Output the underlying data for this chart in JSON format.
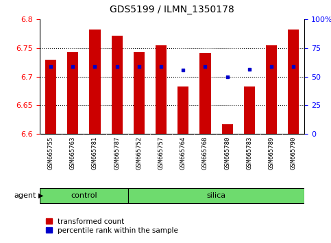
{
  "title": "GDS5199 / ILMN_1350178",
  "samples": [
    "GSM665755",
    "GSM665763",
    "GSM665781",
    "GSM665787",
    "GSM665752",
    "GSM665757",
    "GSM665764",
    "GSM665768",
    "GSM665780",
    "GSM665783",
    "GSM665789",
    "GSM665790"
  ],
  "bar_values": [
    6.73,
    6.743,
    6.782,
    6.772,
    6.743,
    6.755,
    6.683,
    6.742,
    6.617,
    6.683,
    6.755,
    6.782
  ],
  "blue_dot_values": [
    6.718,
    6.717,
    6.718,
    6.718,
    6.718,
    6.718,
    6.712,
    6.718,
    6.7,
    6.713,
    6.718,
    6.718
  ],
  "ylim": [
    6.6,
    6.8
  ],
  "yticks": [
    6.6,
    6.65,
    6.7,
    6.75,
    6.8
  ],
  "right_ytick_labels": [
    "0",
    "25",
    "50",
    "75",
    "100%"
  ],
  "right_yticks_pct": [
    0,
    25,
    50,
    75,
    100
  ],
  "bar_color": "#cc0000",
  "dot_color": "#0000cc",
  "ybase": 6.6,
  "group_color": "#6edb6e",
  "xlabel_bg": "#d3d3d3",
  "control_range": [
    0,
    4
  ],
  "silica_range": [
    4,
    12
  ],
  "legend_labels": [
    "transformed count",
    "percentile rank within the sample"
  ],
  "grid_lines": [
    6.65,
    6.7,
    6.75
  ],
  "title_fontsize": 10,
  "tick_fontsize": 8,
  "label_fontsize": 8
}
